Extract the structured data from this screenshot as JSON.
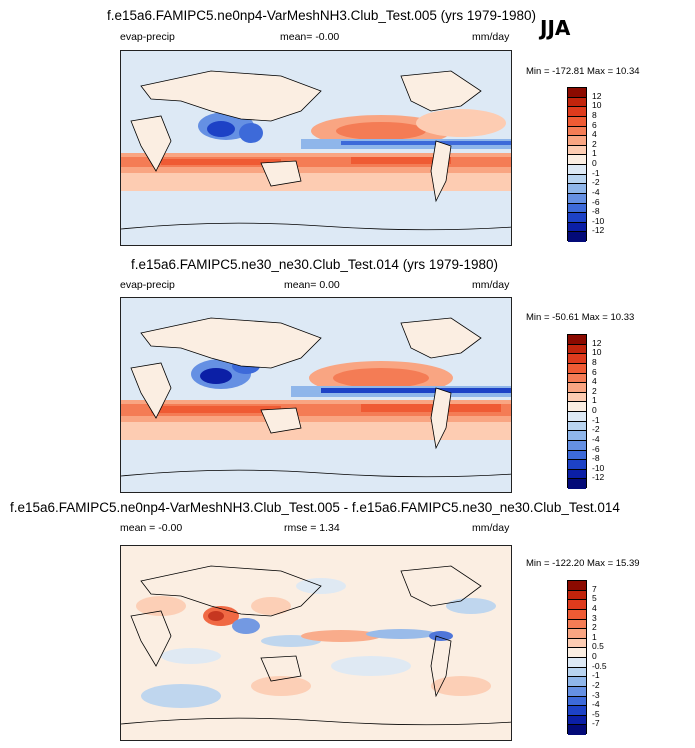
{
  "season": "JJA",
  "panels": [
    {
      "title": "f.e15a6.FAMIPC5.ne0np4-VarMeshNH3.Club_Test.005 (yrs 1979-1980)",
      "left": "evap-precip",
      "center": "mean=  -0.00",
      "right": "mm/day",
      "minmax": "Min = -172.81 Max =  10.34",
      "colorbar": {
        "labels": [
          "12",
          "10",
          "8",
          "6",
          "4",
          "2",
          "1",
          "0",
          "-1",
          "-2",
          "-4",
          "-6",
          "-8",
          "-10",
          "-12"
        ],
        "colors": [
          "#8b0a00",
          "#c1240c",
          "#de3b1d",
          "#ef5b34",
          "#f47c55",
          "#f9a582",
          "#fdccb2",
          "#fbeee2",
          "#dde9f5",
          "#b9d4f0",
          "#8fb6ea",
          "#6590e3",
          "#3d6ad9",
          "#1d42c6",
          "#0b1fa6",
          "#030a78"
        ]
      }
    },
    {
      "title": "f.e15a6.FAMIPC5.ne30_ne30.Club_Test.014 (yrs 1979-1980)",
      "left": "evap-precip",
      "center": "mean=   0.00",
      "right": "mm/day",
      "minmax": "Min = -50.61 Max =  10.33",
      "colorbar": {
        "labels": [
          "12",
          "10",
          "8",
          "6",
          "4",
          "2",
          "1",
          "0",
          "-1",
          "-2",
          "-4",
          "-6",
          "-8",
          "-10",
          "-12"
        ],
        "colors": [
          "#8b0a00",
          "#c1240c",
          "#de3b1d",
          "#ef5b34",
          "#f47c55",
          "#f9a582",
          "#fdccb2",
          "#fbeee2",
          "#dde9f5",
          "#b9d4f0",
          "#8fb6ea",
          "#6590e3",
          "#3d6ad9",
          "#1d42c6",
          "#0b1fa6",
          "#030a78"
        ]
      }
    },
    {
      "title": "f.e15a6.FAMIPC5.ne0np4-VarMeshNH3.Club_Test.005 - f.e15a6.FAMIPC5.ne30_ne30.Club_Test.014",
      "left": "mean =  -0.00",
      "center": "rmse =   1.34",
      "right": "mm/day",
      "minmax": "Min = -122.20 Max =  15.39",
      "colorbar": {
        "labels": [
          "7",
          "5",
          "4",
          "3",
          "2",
          "1",
          "0.5",
          "0",
          "-0.5",
          "-1",
          "-2",
          "-3",
          "-4",
          "-5",
          "-7"
        ],
        "colors": [
          "#8b0a00",
          "#c1240c",
          "#de3b1d",
          "#ef5b34",
          "#f47c55",
          "#f9a582",
          "#fdccb2",
          "#fbeee2",
          "#dde9f5",
          "#b9d4f0",
          "#8fb6ea",
          "#6590e3",
          "#3d6ad9",
          "#1d42c6",
          "#0b1fa6",
          "#030a78"
        ]
      }
    }
  ]
}
